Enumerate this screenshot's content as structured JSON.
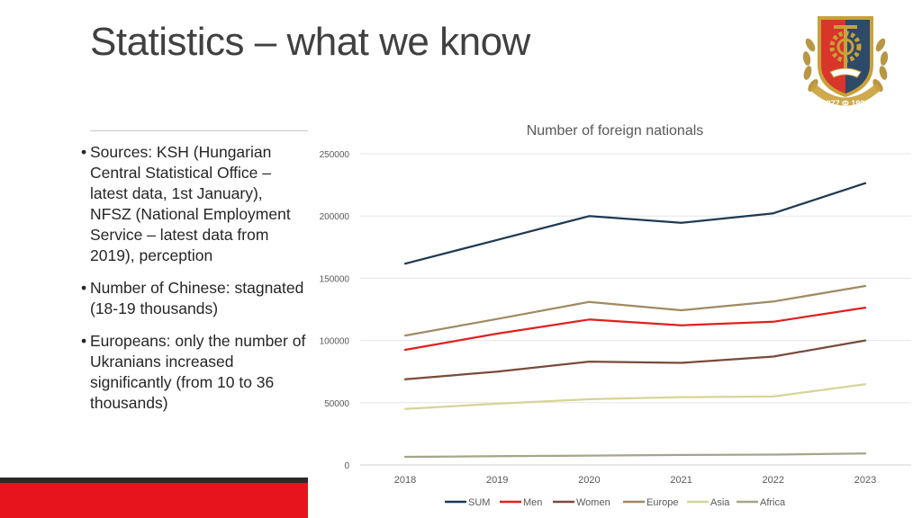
{
  "slide": {
    "title": "Statistics – what we know",
    "bullets": [
      "Sources: KSH (Hungarian Central Statistical Office – latest data, 1st January), NFSZ (National Employment Service – latest data from 2019), perception",
      "Number of Chinese: stagnated (18-19 thousands)",
      "Europeans: only the number of Ukranians increased significantly (from 10 to 36 thousands)"
    ],
    "bullet_glyph": "•",
    "logo": {
      "years_text": "1877 Ф 1903",
      "colors": {
        "shield_red": "#d9352b",
        "shield_dark": "#2d4a68",
        "gold": "#c9a13a",
        "wreath": "#b99643"
      }
    },
    "accent_colors": {
      "red_bar": "#e8141b",
      "dark_bar": "#2a2a2a"
    }
  },
  "chart_data": {
    "type": "line",
    "title": "Number of foreign nationals",
    "xlabel": "",
    "ylabel": "",
    "categories": [
      "2018",
      "2019",
      "2020",
      "2021",
      "2022",
      "2023"
    ],
    "ylim": [
      0,
      250000
    ],
    "yticks": [
      "0",
      "50000",
      "100000",
      "150000",
      "200000",
      "250000"
    ],
    "grid": true,
    "legend_position": "bottom",
    "series": [
      {
        "name": "SUM",
        "color": "#1f3a52",
        "values": [
          161700,
          180800,
          199900,
          194500,
          202200,
          226400
        ]
      },
      {
        "name": "Men",
        "color": "#e02020",
        "values": [
          92500,
          105500,
          116800,
          112200,
          115000,
          126400
        ]
      },
      {
        "name": "Women",
        "color": "#7a4a3a",
        "values": [
          68800,
          75000,
          83000,
          82000,
          87100,
          100000
        ]
      },
      {
        "name": "Europe",
        "color": "#a08a62",
        "values": [
          104000,
          117300,
          131000,
          124300,
          131300,
          143800
        ]
      },
      {
        "name": "Asia",
        "color": "#d6d49a",
        "values": [
          45000,
          49200,
          52800,
          54500,
          55000,
          64800
        ]
      },
      {
        "name": "Africa",
        "color": "#a5a58a",
        "values": [
          6500,
          7000,
          7500,
          8000,
          8300,
          9200
        ]
      }
    ]
  }
}
